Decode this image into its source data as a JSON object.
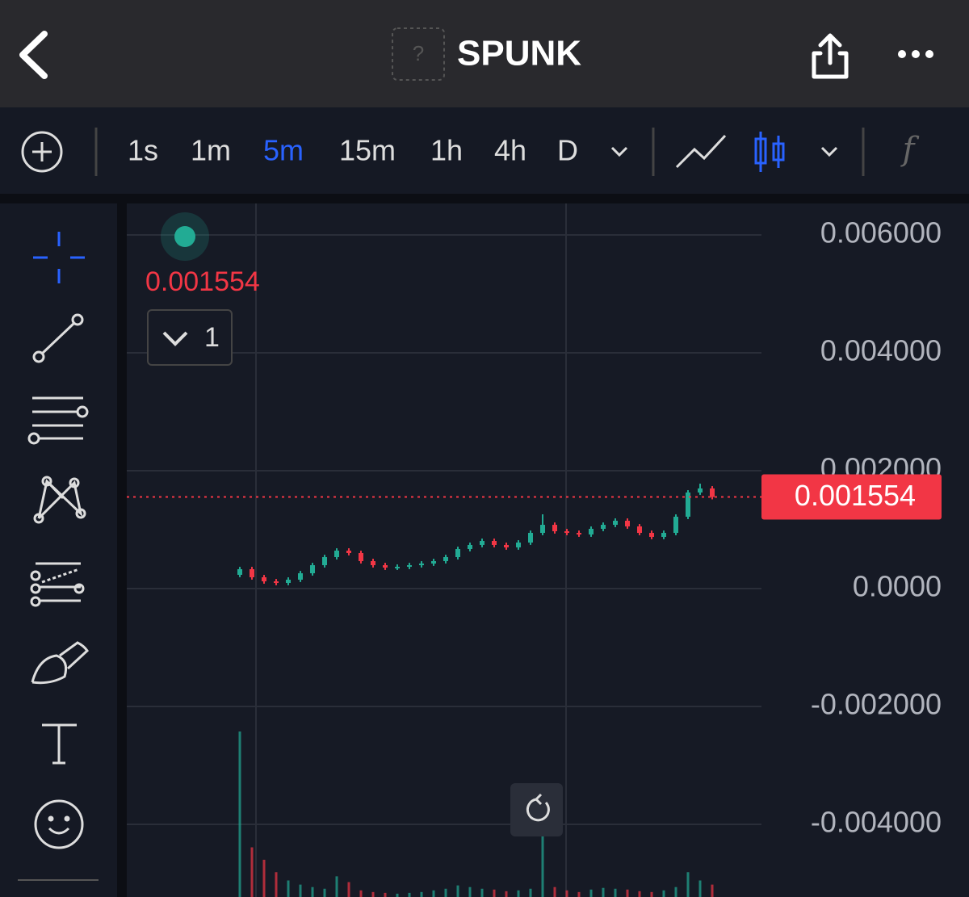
{
  "header": {
    "title": "SPUNK"
  },
  "toolbar": {
    "intervals": [
      "1s",
      "1m",
      "5m",
      "15m",
      "1h",
      "4h",
      "D"
    ],
    "active_interval": 2
  },
  "legend": {
    "count": 1
  },
  "chart_data": {
    "type": "candlestick",
    "candles": [
      [
        0.000233,
        0.000369,
        0.000193,
        0.000329
      ],
      [
        0.000329,
        0.000369,
        0.000152,
        0.000192
      ],
      [
        0.000192,
        0.000232,
        8.3e-05,
        0.000123
      ],
      [
        0.000123,
        0.000163,
        5.6e-05,
        9.6e-05
      ],
      [
        9.6e-05,
        0.000191,
        5.6e-05,
        0.000151
      ],
      [
        0.000151,
        0.0003,
        0.000111,
        0.00026
      ],
      [
        0.00026,
        0.000437,
        0.00022,
        0.000397
      ],
      [
        0.000397,
        0.000574,
        0.000357,
        0.000534
      ],
      [
        0.000534,
        0.000684,
        0.000494,
        0.000644
      ],
      [
        0.000644,
        0.000684,
        0.000563,
        0.000603
      ],
      [
        0.000603,
        0.000643,
        0.000426,
        0.000466
      ],
      [
        0.000466,
        0.000506,
        0.000357,
        0.000397
      ],
      [
        0.000397,
        0.000437,
        0.000316,
        0.000356
      ],
      [
        0.000356,
        0.00041,
        0.000316,
        0.00037
      ],
      [
        0.00037,
        0.000437,
        0.00033,
        0.000397
      ],
      [
        0.000397,
        0.000465,
        0.000357,
        0.000425
      ],
      [
        0.000425,
        0.000506,
        0.000385,
        0.000466
      ],
      [
        0.000466,
        0.000574,
        0.000426,
        0.000534
      ],
      [
        0.000534,
        0.000711,
        0.000494,
        0.000671
      ],
      [
        0.000671,
        0.00078,
        0.000631,
        0.00074
      ],
      [
        0.00074,
        0.000848,
        0.0007,
        0.000808
      ],
      [
        0.000808,
        0.000848,
        0.0007,
        0.00074
      ],
      [
        0.00074,
        0.00078,
        0.000659,
        0.000699
      ],
      [
        0.000699,
        0.000821,
        0.000659,
        0.000781
      ],
      [
        0.000781,
        0.000985,
        0.000741,
        0.000945
      ],
      [
        0.000945,
        0.00126,
        0.000905,
        0.001082
      ],
      [
        0.001082,
        0.001122,
        0.000933,
        0.000973
      ],
      [
        0.000973,
        0.001013,
        0.000905,
        0.000945
      ],
      [
        0.000945,
        0.000985,
        0.000878,
        0.000918
      ],
      [
        0.000918,
        0.001054,
        0.000878,
        0.001014
      ],
      [
        0.001014,
        0.001122,
        0.000974,
        0.001082
      ],
      [
        0.001082,
        0.001191,
        0.001042,
        0.001151
      ],
      [
        0.001151,
        0.001191,
        0.001015,
        0.001055
      ],
      [
        0.001055,
        0.001095,
        0.000905,
        0.000945
      ],
      [
        0.000945,
        0.000985,
        0.000837,
        0.000877
      ],
      [
        0.000877,
        0.000985,
        0.000837,
        0.000945
      ],
      [
        0.000945,
        0.001259,
        0.000905,
        0.001219
      ],
      [
        0.001219,
        0.00167,
        0.001179,
        0.00163
      ],
      [
        0.00163,
        0.00178,
        0.00159,
        0.001699
      ],
      [
        0.001699,
        0.001739,
        0.001514,
        0.001554
      ]
    ],
    "volumes": [
      200,
      60,
      45,
      30,
      20,
      15,
      12,
      10,
      25,
      18,
      8,
      6,
      5,
      4,
      5,
      6,
      8,
      10,
      14,
      12,
      10,
      9,
      7,
      8,
      10,
      75,
      12,
      8,
      6,
      9,
      11,
      10,
      9,
      7,
      6,
      8,
      12,
      30,
      20,
      15
    ],
    "ylim": [
      -0.0052,
      0.0065
    ],
    "yticks": [
      {
        "value": 0.006,
        "label": "0.006000"
      },
      {
        "value": 0.004,
        "label": "0.004000"
      },
      {
        "value": 0.002,
        "label": "0.002000"
      },
      {
        "value": 0,
        "label": "0.0000"
      },
      {
        "value": -0.002,
        "label": "-0.002000"
      },
      {
        "value": -0.004,
        "label": "-0.004000"
      }
    ],
    "last_price": {
      "value": 0.001554,
      "label": "0.001554"
    },
    "colors": {
      "up": "#22ab94",
      "down": "#f23645"
    }
  }
}
